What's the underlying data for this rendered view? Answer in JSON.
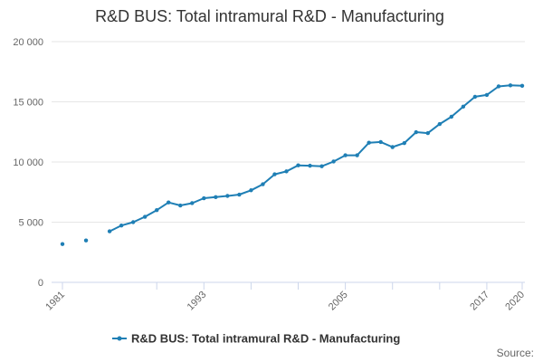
{
  "chart_data": {
    "type": "line",
    "title": "R&D BUS: Total intramural R&D - Manufacturing",
    "xlabel": "",
    "ylabel": "",
    "xlim": [
      1981,
      2020
    ],
    "ylim": [
      0,
      20000
    ],
    "y_ticks": [
      0,
      5000,
      10000,
      15000,
      20000
    ],
    "y_tick_labels": [
      "0",
      "5 000",
      "10 000",
      "15 000",
      "20 000"
    ],
    "x_ticks": [
      1981,
      1993,
      2005,
      2017,
      2020
    ],
    "x_tick_labels": [
      "1981",
      "1993",
      "2005",
      "2017",
      "2020"
    ],
    "x_minor_ticks": [
      1981,
      1989,
      1993,
      1997,
      2001,
      2005,
      2009,
      2013,
      2017,
      2020
    ],
    "grid": true,
    "legend_position": "bottom-center",
    "series": [
      {
        "name": "R&D BUS: Total intramural R&D - Manufacturing",
        "color": "#1f7fb5",
        "x": [
          1981,
          1983,
          1985,
          1986,
          1987,
          1988,
          1989,
          1990,
          1991,
          1992,
          1993,
          1994,
          1995,
          1996,
          1997,
          1998,
          1999,
          2000,
          2001,
          2002,
          2003,
          2004,
          2005,
          2006,
          2007,
          2008,
          2009,
          2010,
          2011,
          2012,
          2013,
          2014,
          2015,
          2016,
          2017,
          2018,
          2019,
          2020
        ],
        "values": [
          3180,
          3480,
          4240,
          4720,
          5000,
          5450,
          6000,
          6640,
          6390,
          6580,
          6990,
          7080,
          7180,
          7290,
          7650,
          8150,
          8980,
          9220,
          9720,
          9690,
          9650,
          10040,
          10560,
          10560,
          11600,
          11660,
          11240,
          11570,
          12480,
          12400,
          13150,
          13760,
          14600,
          15420,
          15570,
          16280,
          16370,
          16330
        ]
      }
    ],
    "gaps_before_x": [
      1983,
      1985
    ]
  },
  "source_label": "Source:"
}
